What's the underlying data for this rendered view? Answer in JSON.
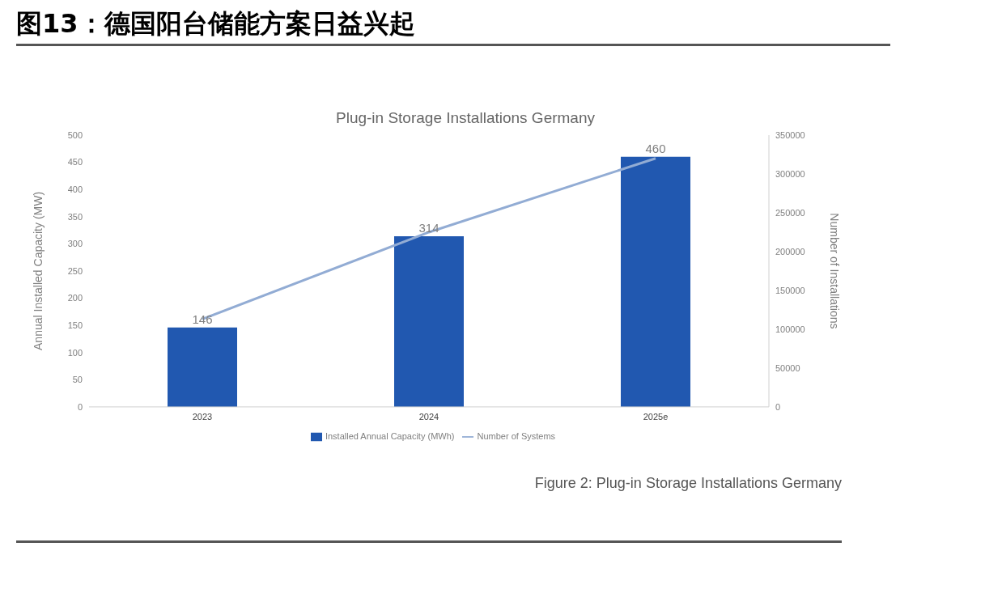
{
  "chart_data": {
    "type": "bar",
    "title": "图13：德国阳台储能方案日益兴起",
    "subtitle": "Plug-in Storage Installations Germany",
    "ylabel": "Annual Installed Capacity (MW)",
    "y2label": "Number of Installations",
    "categories": [
      "2023",
      "2024",
      "2025e"
    ],
    "series": [
      {
        "name": "Installed Annual Capacity (MWh)",
        "color": "#2158b0",
        "values": [
          146,
          314,
          460
        ],
        "value_labels": [
          "146",
          "314",
          "460"
        ]
      },
      {
        "name": "Number of Systems",
        "type": "line",
        "axis": "y2",
        "color": "#92acd4",
        "values": [
          113000,
          225000,
          320000
        ]
      }
    ],
    "ylim": [
      0,
      500
    ],
    "yticks": [
      0,
      50,
      100,
      150,
      200,
      250,
      300,
      350,
      400,
      450,
      500
    ],
    "y2lim": [
      0,
      350000
    ],
    "y2ticks": [
      0,
      50000,
      100000,
      150000,
      200000,
      250000,
      300000,
      350000
    ],
    "grid": false,
    "legend": "bottom",
    "marker": "none",
    "annotations": [
      "Figure 2: Plug-in Storage Installations Germany"
    ]
  }
}
